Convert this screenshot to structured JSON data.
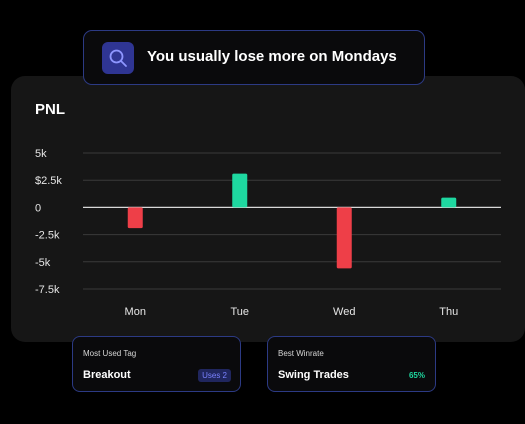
{
  "insight": {
    "icon": "search-icon",
    "message": "You usually lose more on Mondays"
  },
  "panel": {
    "title": "PNL"
  },
  "chart_data": {
    "type": "bar",
    "title": "PNL",
    "categories": [
      "Mon",
      "Tue",
      "Wed",
      "Thu"
    ],
    "values": [
      -1900,
      3100,
      -5600,
      900
    ],
    "yticks": [
      {
        "value": 5000,
        "label": "5k"
      },
      {
        "value": 2500,
        "label": "$2.5k"
      },
      {
        "value": 0,
        "label": "0"
      },
      {
        "value": -2500,
        "label": "-2.5k"
      },
      {
        "value": -5000,
        "label": "-5k"
      },
      {
        "value": -7500,
        "label": "-7.5k"
      }
    ],
    "ylim": [
      -7500,
      5000
    ],
    "grid": true,
    "colors": {
      "positive": "#1ed8a0",
      "negative": "#ee3f48"
    }
  },
  "cards": [
    {
      "label": "Most Used Tag",
      "value": "Breakout",
      "extra": "Uses 2"
    },
    {
      "label": "Best Winrate",
      "value": "Swing Trades",
      "extra": "65%"
    }
  ]
}
